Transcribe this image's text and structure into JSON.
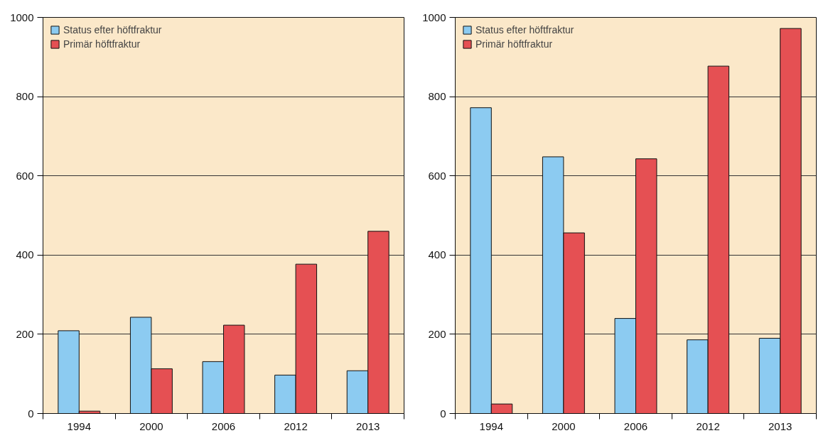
{
  "chart_data": [
    {
      "type": "bar",
      "categories": [
        "1994",
        "2000",
        "2006",
        "2012",
        "2013"
      ],
      "ylim": [
        0,
        1000
      ],
      "yticks": [
        0,
        200,
        400,
        600,
        800,
        1000
      ],
      "grid": "y",
      "legend": "top left",
      "series": [
        {
          "name": "Status efter höftfraktur",
          "color": "#8ccbf1",
          "values": [
            209,
            243,
            131,
            97,
            108
          ]
        },
        {
          "name": "Primär höftfraktur",
          "color": "#e55053",
          "values": [
            6,
            113,
            223,
            377,
            460
          ]
        }
      ]
    },
    {
      "type": "bar",
      "categories": [
        "1994",
        "2000",
        "2006",
        "2012",
        "2013"
      ],
      "ylim": [
        0,
        1000
      ],
      "yticks": [
        0,
        200,
        400,
        600,
        800,
        1000
      ],
      "grid": "y",
      "legend": "top left",
      "series": [
        {
          "name": "Status efter höftfraktur",
          "color": "#8ccbf1",
          "values": [
            772,
            648,
            240,
            186,
            190
          ]
        },
        {
          "name": "Primär höftfraktur",
          "color": "#e55053",
          "values": [
            24,
            456,
            643,
            877,
            972
          ]
        }
      ]
    }
  ]
}
